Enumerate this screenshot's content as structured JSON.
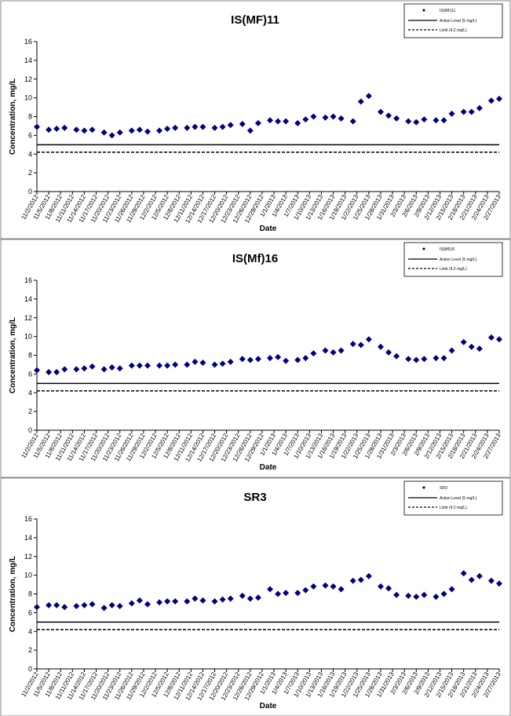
{
  "chart_data": [
    {
      "type": "scatter",
      "title": "IS(MF)11",
      "xlabel": "Date",
      "ylabel": "Concentration, mg/L",
      "x": [
        "11/2/2012",
        "11/5/2012",
        "11/7/2012",
        "11/9/2012",
        "11/12/2012",
        "11/14/2012",
        "11/16/2012",
        "11/19/2012",
        "11/21/2012",
        "11/23/2012",
        "11/26/2012",
        "11/28/2012",
        "11/30/2012",
        "12/3/2012",
        "12/5/2012",
        "12/7/2012",
        "12/10/2012",
        "12/12/2012",
        "12/14/2012",
        "12/17/2012",
        "12/19/2012",
        "12/21/2012",
        "12/24/2012",
        "12/26/2012",
        "12/28/2012",
        "12/31/2012",
        "1/2/2013",
        "1/4/2013",
        "1/7/2013",
        "1/9/2013",
        "1/11/2013",
        "1/14/2013",
        "1/16/2013",
        "1/18/2013",
        "1/21/2013",
        "1/23/2013",
        "1/25/2013",
        "1/28/2013",
        "1/30/2013",
        "2/1/2013",
        "2/4/2013",
        "2/6/2013",
        "2/8/2013",
        "2/11/2013",
        "2/13/2013",
        "2/15/2013",
        "2/18/2013",
        "2/20/2013",
        "2/22/2013",
        "2/25/2013",
        "2/27/2013"
      ],
      "series": [
        {
          "name": "IS(MF)11",
          "color": "#000080",
          "values": [
            6.9,
            6.6,
            6.7,
            6.8,
            6.6,
            6.5,
            6.6,
            6.3,
            6.0,
            6.3,
            6.5,
            6.6,
            6.4,
            6.5,
            6.7,
            6.8,
            6.8,
            6.9,
            6.9,
            6.8,
            6.9,
            7.1,
            7.2,
            6.5,
            7.3,
            7.6,
            7.5,
            7.5,
            7.3,
            7.7,
            8.0,
            7.9,
            8.0,
            7.8,
            7.5,
            9.6,
            10.2,
            8.5,
            8.1,
            7.8,
            7.5,
            7.4,
            7.7,
            7.6,
            7.6,
            8.3,
            8.5,
            8.5,
            8.9,
            9.7,
            9.9
          ]
        }
      ],
      "reference_lines": [
        {
          "name": "Action Level (5 mg/L)",
          "value": 5,
          "style": "solid"
        },
        {
          "name": "Limit (4.2 mg/L)",
          "value": 4.2,
          "style": "dashed"
        }
      ],
      "xlim": [
        "11/2/2012",
        "2/27/2013"
      ],
      "xticks": [
        "11/2/2012",
        "11/5/2012",
        "11/8/2012",
        "11/11/2012",
        "11/14/2012",
        "11/17/2012",
        "11/20/2012",
        "11/23/2012",
        "11/26/2012",
        "11/29/2012",
        "12/2/2012",
        "12/5/2012",
        "12/8/2012",
        "12/11/2012",
        "12/14/2012",
        "12/17/2012",
        "12/20/2012",
        "12/23/2012",
        "12/26/2012",
        "12/29/2012",
        "1/1/2013",
        "1/4/2013",
        "1/7/2013",
        "1/10/2013",
        "1/13/2013",
        "1/16/2013",
        "1/19/2013",
        "1/22/2013",
        "1/25/2013",
        "1/28/2013",
        "1/31/2013",
        "2/3/2013",
        "2/6/2013",
        "2/9/2013",
        "2/12/2013",
        "2/15/2013",
        "2/18/2013",
        "2/21/2013",
        "2/24/2013",
        "2/27/2013"
      ],
      "ylim": [
        0,
        16
      ],
      "yticks": [
        0,
        2,
        4,
        6,
        8,
        10,
        12,
        14,
        16
      ],
      "legend": "upper right"
    },
    {
      "type": "scatter",
      "title": "IS(Mf)16",
      "xlabel": "Date",
      "ylabel": "Concentration, mg/L",
      "x": [
        "11/2/2012",
        "11/5/2012",
        "11/7/2012",
        "11/9/2012",
        "11/12/2012",
        "11/14/2012",
        "11/16/2012",
        "11/19/2012",
        "11/21/2012",
        "11/23/2012",
        "11/26/2012",
        "11/28/2012",
        "11/30/2012",
        "12/3/2012",
        "12/5/2012",
        "12/7/2012",
        "12/10/2012",
        "12/12/2012",
        "12/14/2012",
        "12/17/2012",
        "12/19/2012",
        "12/21/2012",
        "12/24/2012",
        "12/26/2012",
        "12/28/2012",
        "12/31/2012",
        "1/2/2013",
        "1/4/2013",
        "1/7/2013",
        "1/9/2013",
        "1/11/2013",
        "1/14/2013",
        "1/16/2013",
        "1/18/2013",
        "1/21/2013",
        "1/23/2013",
        "1/25/2013",
        "1/28/2013",
        "1/30/2013",
        "2/1/2013",
        "2/4/2013",
        "2/6/2013",
        "2/8/2013",
        "2/11/2013",
        "2/13/2013",
        "2/15/2013",
        "2/18/2013",
        "2/20/2013",
        "2/22/2013",
        "2/25/2013",
        "2/27/2013"
      ],
      "series": [
        {
          "name": "IS(Mf)16",
          "color": "#000080",
          "values": [
            6.4,
            6.2,
            6.2,
            6.5,
            6.5,
            6.6,
            6.8,
            6.5,
            6.7,
            6.6,
            6.9,
            6.9,
            6.9,
            6.9,
            6.9,
            7.0,
            7.0,
            7.3,
            7.2,
            7.0,
            7.1,
            7.3,
            7.6,
            7.5,
            7.6,
            7.7,
            7.8,
            7.4,
            7.5,
            7.7,
            8.2,
            8.5,
            8.3,
            8.5,
            9.2,
            9.1,
            9.7,
            8.9,
            8.3,
            7.9,
            7.6,
            7.5,
            7.6,
            7.7,
            7.7,
            8.5,
            9.4,
            8.9,
            8.7,
            9.9,
            9.7
          ]
        }
      ],
      "reference_lines": [
        {
          "name": "Action Level (5 mg/L)",
          "value": 5,
          "style": "solid"
        },
        {
          "name": "Limit (4.2 mg/L)",
          "value": 4.2,
          "style": "dashed"
        }
      ],
      "xlim": [
        "11/2/2012",
        "2/27/2013"
      ],
      "xticks": [
        "11/2/2012",
        "11/5/2012",
        "11/8/2012",
        "11/11/2012",
        "11/14/2012",
        "11/17/2012",
        "11/20/2012",
        "11/23/2012",
        "11/26/2012",
        "11/29/2012",
        "12/2/2012",
        "12/5/2012",
        "12/8/2012",
        "12/11/2012",
        "12/14/2012",
        "12/17/2012",
        "12/20/2012",
        "12/23/2012",
        "12/26/2012",
        "12/29/2012",
        "1/1/2013",
        "1/4/2013",
        "1/7/2013",
        "1/10/2013",
        "1/13/2013",
        "1/16/2013",
        "1/19/2013",
        "1/22/2013",
        "1/25/2013",
        "1/28/2013",
        "1/31/2013",
        "2/3/2013",
        "2/6/2013",
        "2/9/2013",
        "2/12/2013",
        "2/15/2013",
        "2/18/2013",
        "2/21/2013",
        "2/24/2013",
        "2/27/2013"
      ],
      "ylim": [
        0,
        16
      ],
      "yticks": [
        0,
        2,
        4,
        6,
        8,
        10,
        12,
        14,
        16
      ],
      "legend": "upper right"
    },
    {
      "type": "scatter",
      "title": "SR3",
      "xlabel": "Date",
      "ylabel": "Concentration, mg/L",
      "x": [
        "11/2/2012",
        "11/5/2012",
        "11/7/2012",
        "11/9/2012",
        "11/12/2012",
        "11/14/2012",
        "11/16/2012",
        "11/19/2012",
        "11/21/2012",
        "11/23/2012",
        "11/26/2012",
        "11/28/2012",
        "11/30/2012",
        "12/3/2012",
        "12/5/2012",
        "12/7/2012",
        "12/10/2012",
        "12/12/2012",
        "12/14/2012",
        "12/17/2012",
        "12/19/2012",
        "12/21/2012",
        "12/24/2012",
        "12/26/2012",
        "12/28/2012",
        "12/31/2012",
        "1/2/2013",
        "1/4/2013",
        "1/7/2013",
        "1/9/2013",
        "1/11/2013",
        "1/14/2013",
        "1/16/2013",
        "1/18/2013",
        "1/21/2013",
        "1/23/2013",
        "1/25/2013",
        "1/28/2013",
        "1/30/2013",
        "2/1/2013",
        "2/4/2013",
        "2/6/2013",
        "2/8/2013",
        "2/11/2013",
        "2/13/2013",
        "2/15/2013",
        "2/18/2013",
        "2/20/2013",
        "2/22/2013",
        "2/25/2013",
        "2/27/2013"
      ],
      "series": [
        {
          "name": "SR3",
          "color": "#000080",
          "values": [
            6.6,
            6.8,
            6.8,
            6.6,
            6.7,
            6.8,
            6.9,
            6.5,
            6.8,
            6.7,
            7.0,
            7.3,
            6.9,
            7.1,
            7.2,
            7.2,
            7.2,
            7.5,
            7.3,
            7.2,
            7.4,
            7.5,
            7.8,
            7.5,
            7.6,
            8.5,
            8.0,
            8.1,
            8.1,
            8.4,
            8.8,
            8.9,
            8.8,
            8.5,
            9.4,
            9.5,
            9.9,
            8.8,
            8.6,
            7.9,
            7.8,
            7.7,
            7.9,
            7.7,
            8.0,
            8.5,
            10.2,
            9.5,
            9.9,
            9.4,
            9.1
          ]
        }
      ],
      "reference_lines": [
        {
          "name": "Action Level (5 mg/L)",
          "value": 5,
          "style": "solid"
        },
        {
          "name": "Limit (4.2 mg/L)",
          "value": 4.2,
          "style": "dashed"
        }
      ],
      "xlim": [
        "11/2/2012",
        "2/27/2013"
      ],
      "xticks": [
        "11/2/2012",
        "11/5/2012",
        "11/8/2012",
        "11/11/2012",
        "11/14/2012",
        "11/17/2012",
        "11/20/2012",
        "11/23/2012",
        "11/26/2012",
        "11/29/2012",
        "12/2/2012",
        "12/5/2012",
        "12/8/2012",
        "12/11/2012",
        "12/14/2012",
        "12/17/2012",
        "12/20/2012",
        "12/23/2012",
        "12/26/2012",
        "12/29/2012",
        "1/1/2013",
        "1/4/2013",
        "1/7/2013",
        "1/10/2013",
        "1/13/2013",
        "1/16/2013",
        "1/19/2013",
        "1/22/2013",
        "1/25/2013",
        "1/28/2013",
        "1/31/2013",
        "2/3/2013",
        "2/6/2013",
        "2/9/2013",
        "2/12/2013",
        "2/15/2013",
        "2/18/2013",
        "2/21/2013",
        "2/24/2013",
        "2/27/2013"
      ],
      "ylim": [
        0,
        16
      ],
      "yticks": [
        0,
        2,
        4,
        6,
        8,
        10,
        12,
        14,
        16
      ],
      "legend": "upper right"
    }
  ]
}
